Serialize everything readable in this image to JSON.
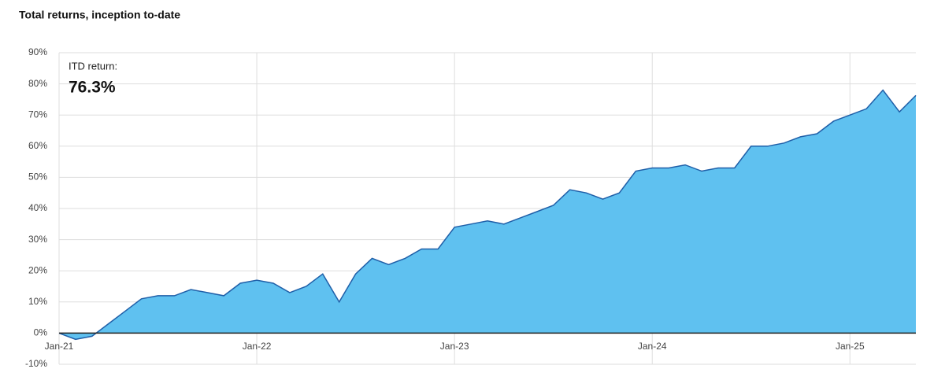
{
  "chart_data": {
    "type": "area",
    "title": "Total returns, inception to-date",
    "annotation": {
      "label": "ITD return:",
      "value": "76.3%"
    },
    "x": [
      "Jan-21",
      "Feb-21",
      "Mar-21",
      "Apr-21",
      "May-21",
      "Jun-21",
      "Jul-21",
      "Aug-21",
      "Sep-21",
      "Oct-21",
      "Nov-21",
      "Dec-21",
      "Jan-22",
      "Feb-22",
      "Mar-22",
      "Apr-22",
      "May-22",
      "Jun-22",
      "Jul-22",
      "Aug-22",
      "Sep-22",
      "Oct-22",
      "Nov-22",
      "Dec-22",
      "Jan-23",
      "Feb-23",
      "Mar-23",
      "Apr-23",
      "May-23",
      "Jun-23",
      "Jul-23",
      "Aug-23",
      "Sep-23",
      "Oct-23",
      "Nov-23",
      "Dec-23",
      "Jan-24",
      "Feb-24",
      "Mar-24",
      "Apr-24",
      "May-24",
      "Jun-24",
      "Jul-24",
      "Aug-24",
      "Sep-24",
      "Oct-24",
      "Nov-24",
      "Dec-24",
      "Jan-25",
      "Feb-25",
      "Mar-25",
      "Apr-25",
      "May-25"
    ],
    "values": [
      0,
      -2,
      -1,
      3,
      7,
      11,
      12,
      12,
      14,
      13,
      12,
      16,
      17,
      16,
      13,
      15,
      19,
      10,
      19,
      24,
      22,
      24,
      27,
      27,
      34,
      35,
      36,
      35,
      37,
      39,
      41,
      46,
      45,
      43,
      45,
      52,
      53,
      53,
      54,
      52,
      53,
      53,
      60,
      60,
      61,
      63,
      64,
      68,
      70,
      72,
      78,
      71,
      76.3
    ],
    "color": "#5fc1f0",
    "line_color": "#1f5fa8",
    "xticks": [
      "Jan-21",
      "Jan-22",
      "Jan-23",
      "Jan-24",
      "Jan-25"
    ],
    "ylim": [
      -10,
      90
    ],
    "yticks": [
      {
        "value": -10,
        "label": "-10%"
      },
      {
        "value": 0,
        "label": "0%"
      },
      {
        "value": 10,
        "label": "10%"
      },
      {
        "value": 20,
        "label": "20%"
      },
      {
        "value": 30,
        "label": "30%"
      },
      {
        "value": 40,
        "label": "40%"
      },
      {
        "value": 50,
        "label": "50%"
      },
      {
        "value": 60,
        "label": "60%"
      },
      {
        "value": 70,
        "label": "70%"
      },
      {
        "value": 80,
        "label": "80%"
      },
      {
        "value": 90,
        "label": "90%"
      }
    ],
    "grid": true
  }
}
